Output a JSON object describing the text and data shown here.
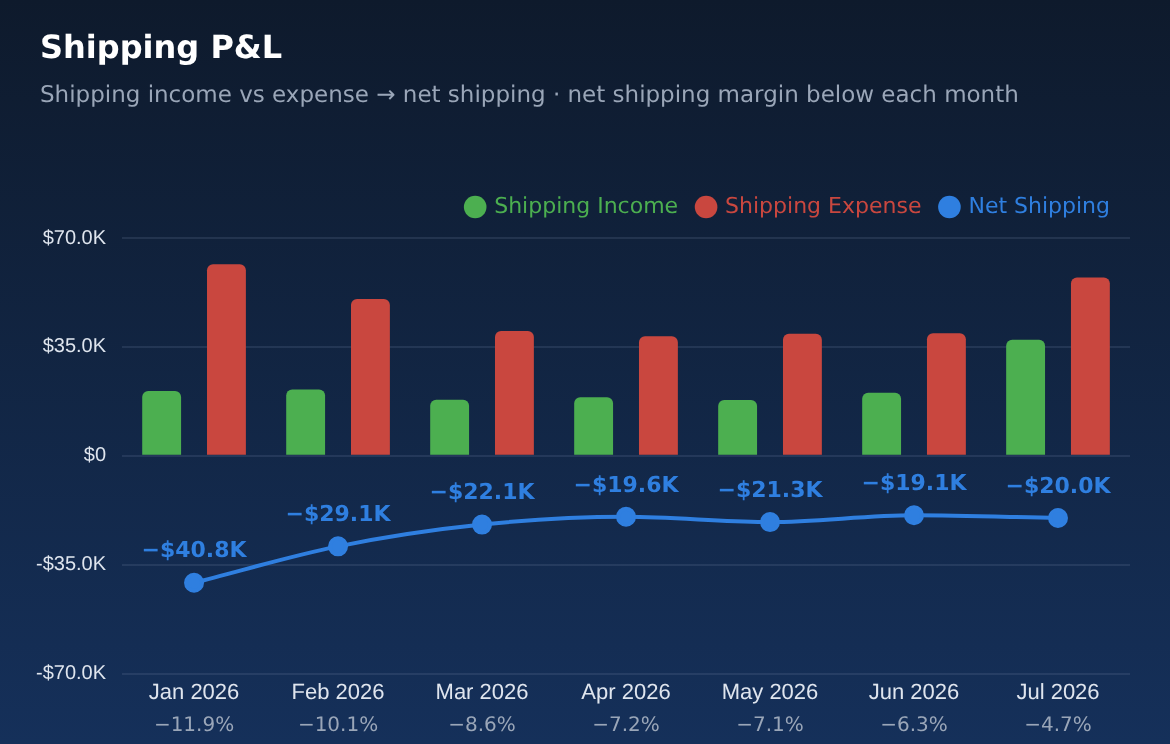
{
  "chart_data": {
    "type": "bar",
    "title": "Shipping P&L",
    "subtitle": "Shipping income vs expense → net shipping · net shipping margin below each month",
    "categories": [
      "Jan 2026",
      "Feb 2026",
      "Mar 2026",
      "Apr 2026",
      "May 2026",
      "Jun 2026",
      "Jul 2026"
    ],
    "series": [
      {
        "name": "Shipping Income",
        "color": "#4caf50",
        "values": [
          20.8,
          21.3,
          18.0,
          18.8,
          17.9,
          20.3,
          37.3
        ]
      },
      {
        "name": "Shipping Expense",
        "color": "#c9473f",
        "values": [
          61.6,
          50.4,
          40.1,
          38.4,
          39.2,
          39.4,
          57.3
        ]
      },
      {
        "name": "Net Shipping",
        "type": "line",
        "color": "#2f7fe0",
        "values": [
          -40.8,
          -29.1,
          -22.1,
          -19.6,
          -21.3,
          -19.1,
          -20.0
        ],
        "value_labels": [
          "−$40.8K",
          "−$29.1K",
          "−$22.1K",
          "−$19.6K",
          "−$21.3K",
          "−$19.1K",
          "−$20.0K"
        ]
      }
    ],
    "ylim": [
      -70,
      70
    ],
    "yticks": [
      {
        "value": -70,
        "label": "-$70.0K"
      },
      {
        "value": -35,
        "label": "-$35.0K"
      },
      {
        "value": 0,
        "label": "$0"
      },
      {
        "value": 35,
        "label": "$35.0K"
      },
      {
        "value": 70,
        "label": "$70.0K"
      }
    ],
    "grid": "y",
    "legend": "top right",
    "marker": "circle",
    "annotations": [
      "−11.9%",
      "−10.1%",
      "−8.6%",
      "−7.2%",
      "−7.1%",
      "−6.3%",
      "−4.7%"
    ]
  }
}
